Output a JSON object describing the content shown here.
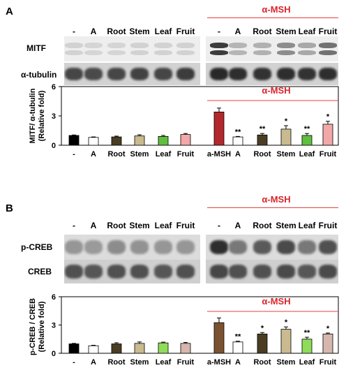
{
  "panels": [
    {
      "id": "A",
      "letter": "A",
      "treatment_header": "α-MSH",
      "lanes": [
        "-",
        "A",
        "Root",
        "Stem",
        "Leaf",
        "Fruit",
        "-",
        "A",
        "Root",
        "Stem",
        "Leaf",
        "Fruit"
      ],
      "blots": [
        {
          "label": "MITF",
          "bands": [
            0.12,
            0.1,
            0.1,
            0.12,
            0.12,
            0.12,
            0.95,
            0.28,
            0.3,
            0.5,
            0.35,
            0.65
          ],
          "style": "faint-double"
        },
        {
          "label": "α-tubulin",
          "bands": [
            0.8,
            0.78,
            0.8,
            0.82,
            0.8,
            0.85,
            0.95,
            0.92,
            0.9,
            0.92,
            0.9,
            0.92
          ],
          "style": "dark"
        }
      ],
      "chart_data": {
        "type": "bar",
        "ylabel_line1": "MITF/ α-tubulin",
        "ylabel_line2": "(Relative fold)",
        "ylim": [
          0,
          6
        ],
        "yticks": [
          "0",
          "3",
          "6"
        ],
        "group_header": "α-MSH",
        "categories": [
          "-",
          "A",
          "Root",
          "Stem",
          "Leaf",
          "Fruit",
          "a-MSH",
          "A",
          "Root",
          "Stem",
          "Leaf",
          "Fruit"
        ],
        "values": [
          1.0,
          0.8,
          0.85,
          0.95,
          0.9,
          1.1,
          3.4,
          0.85,
          1.05,
          1.65,
          1.0,
          2.15
        ],
        "errors": [
          0.05,
          0.05,
          0.08,
          0.12,
          0.1,
          0.1,
          0.4,
          0.05,
          0.15,
          0.35,
          0.2,
          0.3
        ],
        "significance": [
          "",
          "",
          "",
          "",
          "",
          "",
          "",
          "**",
          "**",
          "*",
          "**",
          "*"
        ],
        "colors": [
          "#000000",
          "#ffffff",
          "#4a3d24",
          "#c9bb8f",
          "#5fbf3f",
          "#f2a8a8",
          "#b3282d",
          "#ffffff",
          "#4a3d24",
          "#c9bb8f",
          "#5fbf3f",
          "#f2a8a8"
        ]
      }
    },
    {
      "id": "B",
      "letter": "B",
      "treatment_header": "α-MSH",
      "lanes": [
        "-",
        "A",
        "Root",
        "Stem",
        "Leaf",
        "Fruit",
        "-",
        "A",
        "Root",
        "Stem",
        "Leaf",
        "Fruit"
      ],
      "blots": [
        {
          "label": "p-CREB",
          "bands": [
            0.4,
            0.38,
            0.45,
            0.42,
            0.4,
            0.4,
            0.92,
            0.55,
            0.7,
            0.78,
            0.55,
            0.75
          ],
          "style": "medium"
        },
        {
          "label": "CREB",
          "bands": [
            0.75,
            0.72,
            0.75,
            0.75,
            0.72,
            0.75,
            0.8,
            0.75,
            0.75,
            0.78,
            0.72,
            0.78
          ],
          "style": "dark"
        }
      ],
      "chart_data": {
        "type": "bar",
        "ylabel_line1": "p-CREB / CREB",
        "ylabel_line2": "(Relative fold)",
        "ylim": [
          0,
          6
        ],
        "yticks": [
          "0",
          "3",
          "6"
        ],
        "group_header": "α-MSH",
        "categories": [
          "-",
          "A",
          "Root",
          "Stem",
          "Leaf",
          "Fruit",
          "a-MSH",
          "A",
          "Root",
          "Stem",
          "Leaf",
          "Fruit"
        ],
        "values": [
          1.0,
          0.8,
          1.0,
          1.05,
          1.1,
          1.05,
          3.25,
          1.2,
          2.05,
          2.55,
          1.5,
          2.05
        ],
        "errors": [
          0.05,
          0.05,
          0.12,
          0.15,
          0.08,
          0.1,
          0.5,
          0.08,
          0.15,
          0.25,
          0.2,
          0.1
        ],
        "significance": [
          "",
          "",
          "",
          "",
          "",
          "",
          "",
          "**",
          "*",
          "*",
          "**",
          "*"
        ],
        "colors": [
          "#000000",
          "#ffffff",
          "#4a3d24",
          "#c9bb8f",
          "#8fdc5a",
          "#d7b7ad",
          "#7b5230",
          "#ffffff",
          "#4a3d24",
          "#c9bb8f",
          "#8fdc5a",
          "#d7b7ad"
        ]
      }
    }
  ]
}
